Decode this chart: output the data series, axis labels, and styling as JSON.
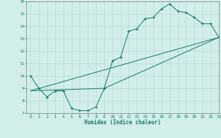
{
  "title": "",
  "xlabel": "Humidex (Indice chaleur)",
  "xlim": [
    -0.5,
    23
  ],
  "ylim": [
    7,
    16
  ],
  "xticks": [
    0,
    1,
    2,
    3,
    4,
    5,
    6,
    7,
    8,
    9,
    10,
    11,
    12,
    13,
    14,
    15,
    16,
    17,
    18,
    19,
    20,
    21,
    22,
    23
  ],
  "yticks": [
    7,
    8,
    9,
    10,
    11,
    12,
    13,
    14,
    15,
    16
  ],
  "background_color": "#d1eeeb",
  "line_color": "#1a7a6a",
  "grid_color": "#b8d8d4",
  "curve1_x": [
    0,
    1,
    2,
    3,
    4,
    5,
    6,
    7,
    8,
    9,
    10,
    11,
    12,
    13,
    14,
    15,
    16,
    17,
    18,
    19,
    20,
    21,
    22,
    23
  ],
  "curve1_y": [
    10.0,
    9.0,
    8.3,
    8.8,
    8.8,
    7.4,
    7.2,
    7.2,
    7.5,
    9.0,
    11.2,
    11.5,
    13.6,
    13.8,
    14.6,
    14.7,
    15.4,
    15.8,
    15.2,
    15.1,
    14.7,
    14.2,
    14.2,
    13.1
  ],
  "line2_x": [
    0,
    23
  ],
  "line2_y": [
    8.8,
    13.1
  ],
  "line3_x": [
    0,
    9,
    23
  ],
  "line3_y": [
    8.8,
    9.0,
    13.1
  ]
}
